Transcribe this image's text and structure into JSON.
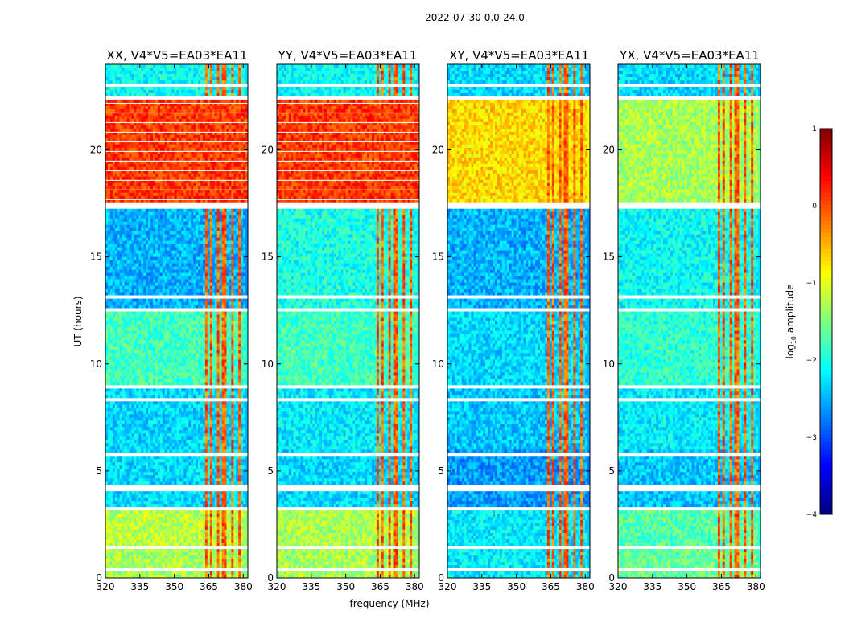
{
  "figure": {
    "suptitle": "2022-07-30 0.0-24.0",
    "xlabel": "frequency (MHz)",
    "ylabel": "UT (hours)",
    "colorbar_label": "log₁₀ amplitude"
  },
  "chart_data": {
    "type": "heatmap",
    "colormap": "jet",
    "panels": [
      {
        "title": "XX, V4*V5=EA03*EA11",
        "profile": "xx"
      },
      {
        "title": "YY, V4*V5=EA03*EA11",
        "profile": "yy"
      },
      {
        "title": "XY, V4*V5=EA03*EA11",
        "profile": "xy"
      },
      {
        "title": "YX, V4*V5=EA03*EA11",
        "profile": "yx"
      }
    ],
    "x_range": [
      320,
      382
    ],
    "y_range": [
      0,
      24
    ],
    "x_ticks": [
      "320",
      "335",
      "350",
      "365",
      "380"
    ],
    "x_tick_values": [
      320,
      335,
      350,
      365,
      380
    ],
    "y_ticks": [
      "0",
      "5",
      "10",
      "15",
      "20"
    ],
    "y_tick_values": [
      0,
      5,
      10,
      15,
      20
    ],
    "colorbar_range": [
      -4,
      1
    ],
    "colorbar_ticks": [
      "−4",
      "−3",
      "−2",
      "−1",
      "0",
      "1"
    ],
    "colorbar_tick_values": [
      -4,
      -3,
      -2,
      -1,
      0,
      1
    ],
    "rfi_bands_mhz": [
      [
        363,
        364.5
      ],
      [
        365.5,
        367
      ],
      [
        368.5,
        370
      ],
      [
        371,
        373
      ],
      [
        374.5,
        376
      ],
      [
        377.5,
        379
      ]
    ],
    "flagged_time_ranges_hours": [
      [
        0.3,
        0.45
      ],
      [
        1.4,
        1.5
      ],
      [
        3.1,
        3.25
      ],
      [
        4.1,
        4.3
      ],
      [
        5.75,
        5.9
      ],
      [
        8.2,
        8.35
      ],
      [
        8.9,
        9.0
      ],
      [
        12.4,
        12.6
      ],
      [
        13.1,
        13.25
      ],
      [
        16.0,
        16.1
      ],
      [
        17.3,
        17.6
      ],
      [
        22.3,
        22.5
      ],
      [
        23.0,
        23.15
      ],
      [
        23.5,
        23.6
      ]
    ],
    "time_segments": [
      {
        "range": [
          0,
          1.5
        ],
        "xx": -1.3,
        "yy": -1.3,
        "xy": -2.2,
        "yx": -1.6
      },
      {
        "range": [
          1.5,
          3.1
        ],
        "xx": -1.2,
        "yy": -1.3,
        "xy": -2.2,
        "yx": -1.7
      },
      {
        "range": [
          3.1,
          6.0
        ],
        "xx": -2.3,
        "yy": -2.3,
        "xy": -2.6,
        "yx": -2.4
      },
      {
        "range": [
          6.0,
          8.9
        ],
        "xx": -2.3,
        "yy": -2.2,
        "xy": -2.4,
        "yx": -2.2
      },
      {
        "range": [
          8.9,
          12.5
        ],
        "xx": -1.8,
        "yy": -1.8,
        "xy": -2.3,
        "yx": -1.9
      },
      {
        "range": [
          12.5,
          17.4
        ],
        "xx": -2.5,
        "yy": -2.0,
        "xy": -2.5,
        "yx": -2.1
      },
      {
        "range": [
          17.4,
          22.4
        ],
        "xx": 0.1,
        "yy": 0.1,
        "xy": -0.7,
        "yx": -1.3
      },
      {
        "range": [
          22.4,
          24
        ],
        "xx": -2.1,
        "yy": -2.1,
        "xy": -2.3,
        "yx": -2.3
      }
    ],
    "rfi_level": -0.1
  }
}
